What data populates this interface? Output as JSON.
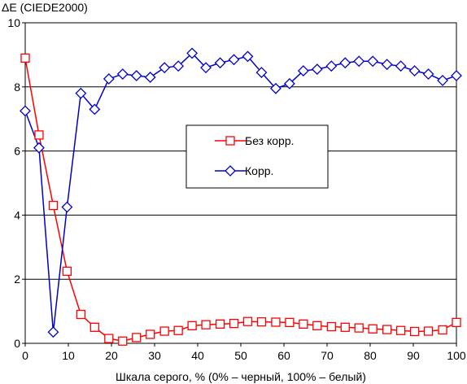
{
  "chart_data": {
    "type": "line",
    "ylabel": "ΔE (CIEDE2000)",
    "xlabel": "Шкала серого, % (0% – черный, 100% – белый)",
    "xlim": [
      0,
      100
    ],
    "ylim": [
      0,
      10
    ],
    "x_ticks": [
      "0",
      "10",
      "20",
      "30",
      "40",
      "50",
      "60",
      "70",
      "80",
      "90",
      "100"
    ],
    "y_ticks": [
      "0",
      "2",
      "4",
      "6",
      "8",
      "10"
    ],
    "grid": "horizontal",
    "legend_position": "center",
    "x": [
      0,
      3.2,
      6.5,
      9.7,
      12.9,
      16.1,
      19.4,
      22.6,
      25.8,
      29.0,
      32.3,
      35.5,
      38.7,
      41.9,
      45.2,
      48.4,
      51.6,
      54.8,
      58.1,
      61.3,
      64.5,
      67.7,
      71.0,
      74.2,
      77.4,
      80.6,
      83.9,
      87.1,
      90.3,
      93.5,
      96.8,
      100
    ],
    "series": [
      {
        "name": "Без корр.",
        "color": "#ff0000",
        "marker": "square",
        "values": [
          8.9,
          6.5,
          4.3,
          2.25,
          0.9,
          0.5,
          0.15,
          0.07,
          0.18,
          0.28,
          0.38,
          0.4,
          0.55,
          0.58,
          0.6,
          0.62,
          0.68,
          0.67,
          0.66,
          0.65,
          0.6,
          0.55,
          0.52,
          0.5,
          0.48,
          0.45,
          0.43,
          0.4,
          0.37,
          0.38,
          0.42,
          0.65
        ]
      },
      {
        "name": "Корр.",
        "color": "#0000cc",
        "marker": "diamond",
        "values": [
          7.25,
          6.1,
          0.35,
          4.25,
          7.8,
          7.3,
          8.25,
          8.4,
          8.35,
          8.3,
          8.6,
          8.65,
          9.05,
          8.6,
          8.75,
          8.85,
          8.95,
          8.45,
          7.95,
          8.1,
          8.5,
          8.55,
          8.65,
          8.75,
          8.8,
          8.8,
          8.7,
          8.65,
          8.5,
          8.4,
          8.2,
          8.35
        ]
      }
    ]
  }
}
